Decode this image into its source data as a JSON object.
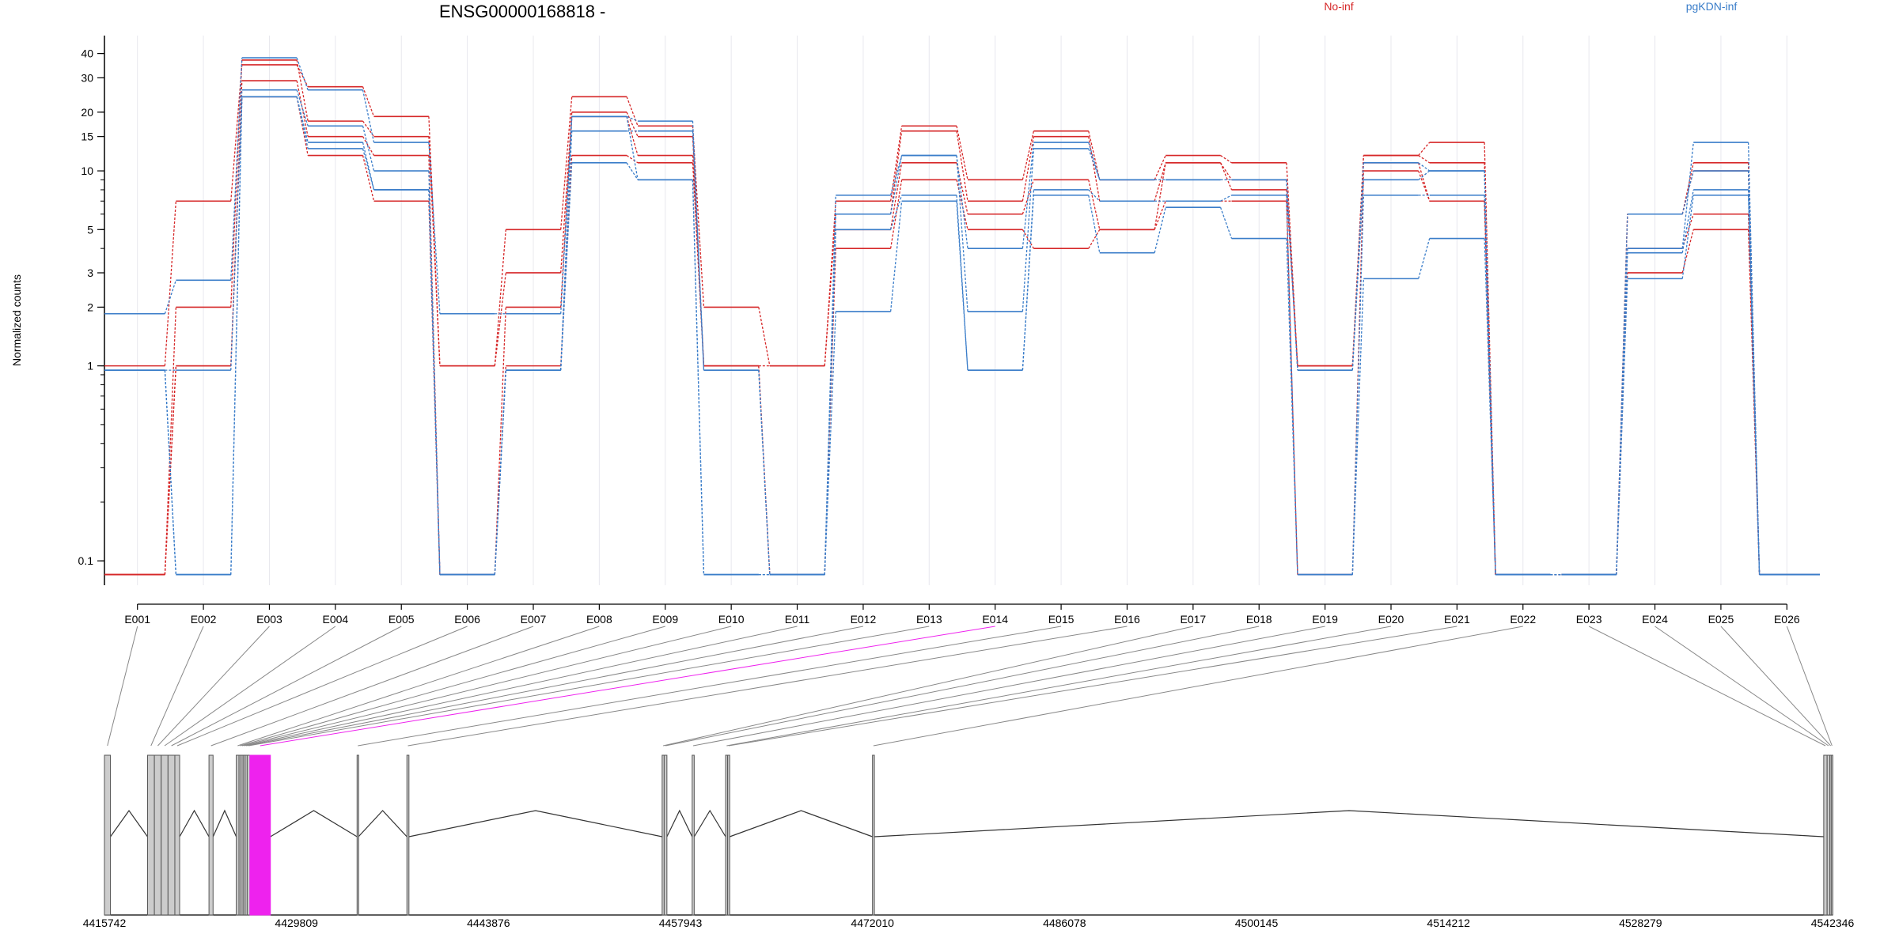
{
  "chart_data": {
    "type": "line",
    "title": "ENSG00000168818 -",
    "ylabel": "Normalized counts",
    "yscale": "log",
    "ylim": [
      0.075,
      45
    ],
    "y_ticks": [
      {
        "value": 0.1,
        "label": "0.1"
      },
      {
        "value": 1,
        "label": "1"
      },
      {
        "value": 2,
        "label": "2"
      },
      {
        "value": 3,
        "label": "3"
      },
      {
        "value": 5,
        "label": "5"
      },
      {
        "value": 10,
        "label": "10"
      },
      {
        "value": 15,
        "label": "15"
      },
      {
        "value": 20,
        "label": "20"
      },
      {
        "value": 30,
        "label": "30"
      },
      {
        "value": 40,
        "label": "40"
      }
    ],
    "categories": [
      "E001",
      "E002",
      "E003",
      "E004",
      "E005",
      "E006",
      "E007",
      "E008",
      "E009",
      "E010",
      "E011",
      "E012",
      "E013",
      "E014",
      "E015",
      "E016",
      "E017",
      "E018",
      "E019",
      "E020",
      "E021",
      "E022",
      "E023",
      "E024",
      "E025",
      "E026"
    ],
    "legend": [
      {
        "name": "No-inf",
        "color": "#d62728"
      },
      {
        "name": "pgKDN-inf",
        "color": "#3a7dc9"
      }
    ],
    "series": [
      {
        "group": "No-inf",
        "color": "#d62728",
        "values": [
          1,
          7,
          35,
          27,
          19,
          1,
          5,
          24,
          17,
          2,
          1,
          7,
          17,
          9,
          16,
          9,
          12,
          11,
          1,
          12,
          14,
          0.085,
          0.085,
          6,
          11,
          0.085
        ]
      },
      {
        "group": "No-inf",
        "color": "#d62728",
        "values": [
          0.085,
          2,
          37,
          18,
          15,
          1,
          3,
          20,
          15,
          1,
          1,
          6,
          16,
          7,
          15,
          7,
          11,
          9,
          1,
          12,
          11,
          0.085,
          0.085,
          6,
          10,
          0.085
        ]
      },
      {
        "group": "No-inf",
        "color": "#d62728",
        "values": [
          0.085,
          1,
          29,
          15,
          12,
          0.085,
          2,
          19,
          12,
          1,
          0.085,
          5,
          11,
          6,
          9,
          5,
          11,
          8,
          1,
          11,
          7,
          0.085,
          0.085,
          4,
          6,
          0.085
        ]
      },
      {
        "group": "No-inf",
        "color": "#d62728",
        "values": [
          0.085,
          1,
          24,
          12,
          7,
          0.085,
          1,
          12,
          11,
          1,
          0.085,
          4,
          9,
          5,
          4,
          5,
          7,
          7,
          0.085,
          10,
          7,
          0.085,
          0.085,
          3,
          5,
          0.085
        ]
      },
      {
        "group": "pgKDN-inf",
        "color": "#3a7dc9",
        "values": [
          1.85,
          2.75,
          38,
          26,
          14,
          1.85,
          1.85,
          19,
          18,
          0.95,
          0.085,
          7.5,
          12,
          4,
          14,
          9,
          9,
          9,
          0.95,
          11,
          10,
          0.085,
          0.085,
          4,
          14,
          0.085
        ]
      },
      {
        "group": "pgKDN-inf",
        "color": "#3a7dc9",
        "values": [
          0.95,
          0.95,
          26,
          17,
          10,
          0.085,
          0.95,
          16,
          16,
          0.95,
          0.085,
          6,
          12,
          1.9,
          13,
          9,
          9,
          9,
          0.95,
          9,
          10,
          0.085,
          0.085,
          6,
          10,
          0.085
        ]
      },
      {
        "group": "pgKDN-inf",
        "color": "#3a7dc9",
        "values": [
          0.95,
          0.085,
          24,
          14,
          8,
          0.085,
          0.95,
          19,
          9,
          0.085,
          0.085,
          5,
          7.5,
          0.95,
          8,
          7,
          7,
          7.5,
          0.085,
          7.5,
          7.5,
          0.085,
          0.085,
          3.8,
          8,
          0.085
        ]
      },
      {
        "group": "pgKDN-inf",
        "color": "#3a7dc9",
        "values": [
          0.95,
          0.085,
          24,
          13,
          8,
          0.085,
          0.95,
          11,
          9,
          0.085,
          0.085,
          1.9,
          7,
          0.95,
          7.5,
          3.8,
          6.5,
          4.5,
          0.085,
          2.8,
          4.5,
          0.085,
          0.085,
          2.8,
          7.5,
          0.085
        ]
      }
    ],
    "gene_model": {
      "coordinate_ticks": [
        "4415742",
        "4429809",
        "4443876",
        "4457943",
        "4472010",
        "4486078",
        "4500145",
        "4514212",
        "4528279",
        "4542346"
      ],
      "coordinate_start": 4415742,
      "coordinate_end": 4542346,
      "highlight_color": "#ee22ee",
      "highlighted_exon": "E014",
      "exons": [
        {
          "id": "E001",
          "start": 4415742,
          "end": 4416180
        },
        {
          "id": "E002",
          "start": 4418900,
          "end": 4419400
        },
        {
          "id": "E003",
          "start": 4419400,
          "end": 4419900
        },
        {
          "id": "E004",
          "start": 4419900,
          "end": 4420400
        },
        {
          "id": "E005",
          "start": 4420400,
          "end": 4420900
        },
        {
          "id": "E006",
          "start": 4420900,
          "end": 4421250
        },
        {
          "id": "E007",
          "start": 4423400,
          "end": 4423700
        },
        {
          "id": "E008",
          "start": 4425400,
          "end": 4425600
        },
        {
          "id": "E009",
          "start": 4425600,
          "end": 4425750
        },
        {
          "id": "E010",
          "start": 4425750,
          "end": 4425900
        },
        {
          "id": "E011",
          "start": 4425900,
          "end": 4426050
        },
        {
          "id": "E012",
          "start": 4426050,
          "end": 4426200
        },
        {
          "id": "E013",
          "start": 4426200,
          "end": 4426400
        },
        {
          "id": "E014",
          "start": 4426400,
          "end": 4427900
        },
        {
          "id": "E015",
          "start": 4434250,
          "end": 4434350
        },
        {
          "id": "E016",
          "start": 4437900,
          "end": 4438050
        },
        {
          "id": "E017",
          "start": 4456600,
          "end": 4456750
        },
        {
          "id": "E018",
          "start": 4456750,
          "end": 4456950
        },
        {
          "id": "E019",
          "start": 4458800,
          "end": 4458950
        },
        {
          "id": "E020",
          "start": 4461250,
          "end": 4461400
        },
        {
          "id": "E021",
          "start": 4461400,
          "end": 4461550
        },
        {
          "id": "E022",
          "start": 4472010,
          "end": 4472150
        },
        {
          "id": "E023",
          "start": 4541700,
          "end": 4541950
        },
        {
          "id": "E024",
          "start": 4541950,
          "end": 4542150
        },
        {
          "id": "E025",
          "start": 4542150,
          "end": 4542250
        },
        {
          "id": "E026",
          "start": 4542250,
          "end": 4542346
        }
      ],
      "introns": [
        [
          4416180,
          4418900
        ],
        [
          4421250,
          4423400
        ],
        [
          4423700,
          4425400
        ],
        [
          4427900,
          4434250
        ],
        [
          4434350,
          4437900
        ],
        [
          4438050,
          4456600
        ],
        [
          4456950,
          4458800
        ],
        [
          4458950,
          4461250
        ],
        [
          4461550,
          4472010
        ],
        [
          4472150,
          4541700
        ]
      ]
    }
  }
}
